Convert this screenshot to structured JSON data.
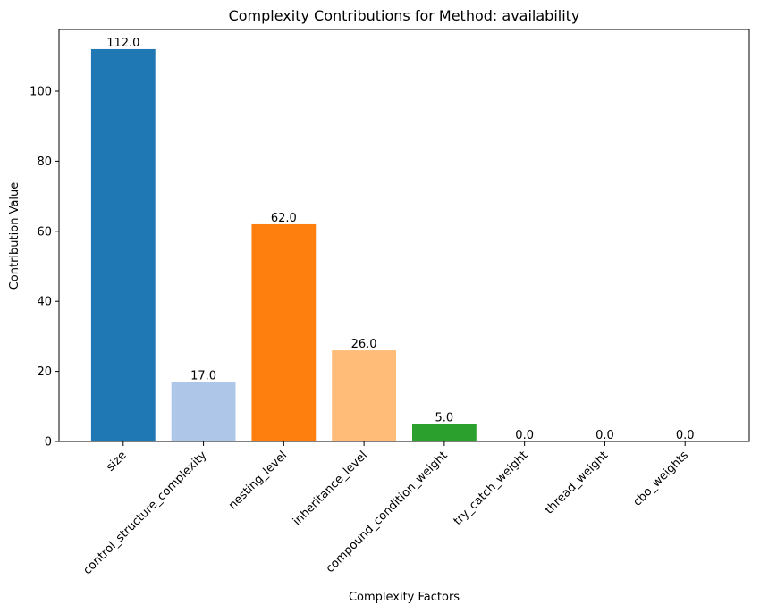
{
  "chart_data": {
    "type": "bar",
    "title": "Complexity Contributions for Method: availability",
    "xlabel": "Complexity Factors",
    "ylabel": "Contribution Value",
    "categories": [
      "size",
      "control_structure_complexity",
      "nesting_level",
      "inheritance_level",
      "compound_condition_weight",
      "try_catch_weight",
      "thread_weight",
      "cbo_weights"
    ],
    "values": [
      112.0,
      17.0,
      62.0,
      26.0,
      5.0,
      0.0,
      0.0,
      0.0
    ],
    "value_labels": [
      "112.0",
      "17.0",
      "62.0",
      "26.0",
      "5.0",
      "0.0",
      "0.0",
      "0.0"
    ],
    "colors": [
      "#1f77b4",
      "#aec7e8",
      "#ff7f0e",
      "#ffbb78",
      "#2ca02c",
      "#98df8a",
      "#d62728",
      "#ff9896"
    ],
    "ylim": [
      0,
      117.6
    ],
    "yticks": [
      0,
      20,
      40,
      60,
      80,
      100
    ],
    "grid": false,
    "legend": "none"
  }
}
